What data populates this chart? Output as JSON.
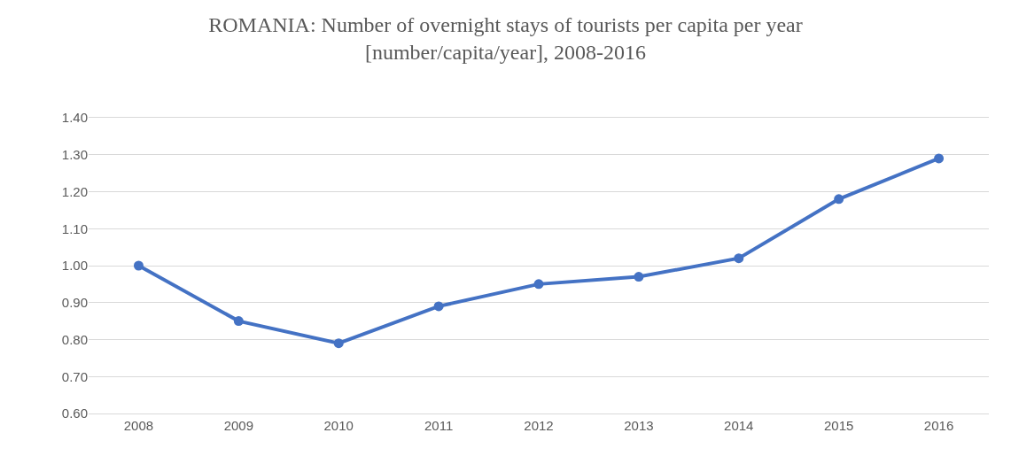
{
  "chart_data": {
    "type": "line",
    "title": "ROMANIA: Number of overnight stays of tourists per capita per year\n[number/capita/year], 2008-2016",
    "categories": [
      "2008",
      "2009",
      "2010",
      "2011",
      "2012",
      "2013",
      "2014",
      "2015",
      "2016"
    ],
    "series": [
      {
        "color": "#4472c4",
        "values": [
          1.0,
          0.85,
          0.79,
          0.89,
          0.95,
          0.97,
          1.02,
          1.18,
          1.29
        ]
      }
    ],
    "ylim": [
      0.6,
      1.4
    ],
    "yticks": [
      {
        "value": 0.6,
        "label": "0.60"
      },
      {
        "value": 0.7,
        "label": "0.70"
      },
      {
        "value": 0.8,
        "label": "0.80"
      },
      {
        "value": 0.9,
        "label": "0.90"
      },
      {
        "value": 1.0,
        "label": "1.00"
      },
      {
        "value": 1.1,
        "label": "1.10"
      },
      {
        "value": 1.2,
        "label": "1.20"
      },
      {
        "value": 1.3,
        "label": "1.30"
      },
      {
        "value": 1.4,
        "label": "1.40"
      }
    ],
    "grid": "y",
    "marker": "circle",
    "line_style": "solid"
  }
}
